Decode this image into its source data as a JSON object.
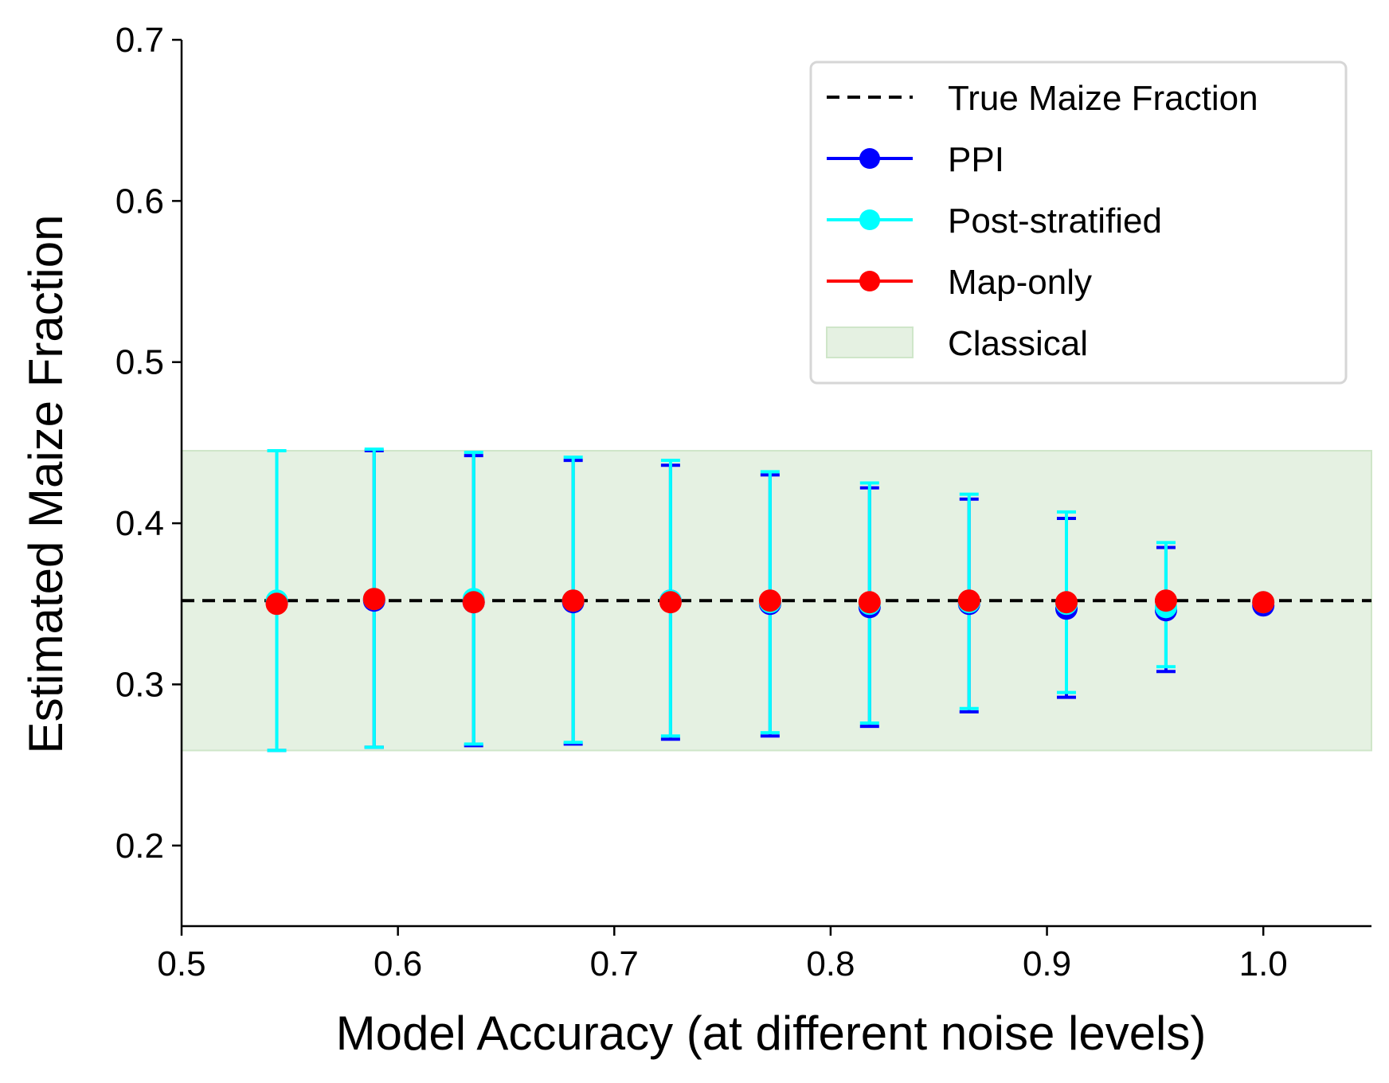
{
  "chart_data": {
    "type": "scatter",
    "title": "",
    "xlabel": "Model Accuracy (at different noise levels)",
    "ylabel": "Estimated Maize Fraction",
    "xlim": [
      0.5,
      1.05
    ],
    "ylim": [
      0.15,
      0.7
    ],
    "xticks": [
      "0.5",
      "0.6",
      "0.7",
      "0.8",
      "0.9",
      "1.0"
    ],
    "xtick_values": [
      0.5,
      0.6,
      0.7,
      0.8,
      0.9,
      1.0
    ],
    "yticks": [
      "0.2",
      "0.3",
      "0.4",
      "0.5",
      "0.6",
      "0.7"
    ],
    "ytick_values": [
      0.2,
      0.3,
      0.4,
      0.5,
      0.6,
      0.7
    ],
    "grid": false,
    "legend_position": "top-right",
    "x": [
      0.544,
      0.589,
      0.635,
      0.681,
      0.726,
      0.772,
      0.818,
      0.864,
      0.909,
      0.955,
      1.0
    ],
    "true_value": 0.352,
    "classical_interval": [
      0.259,
      0.445
    ],
    "series": [
      {
        "name": "PPI",
        "color": "#0000ff",
        "y": [
          0.351,
          0.352,
          0.351,
          0.351,
          0.352,
          0.35,
          0.348,
          0.35,
          0.347,
          0.346,
          0.349
        ],
        "lower": [
          0.259,
          0.261,
          0.262,
          0.263,
          0.266,
          0.268,
          0.274,
          0.283,
          0.292,
          0.308,
          0.347
        ],
        "upper": [
          0.445,
          0.445,
          0.442,
          0.439,
          0.436,
          0.43,
          0.422,
          0.415,
          0.403,
          0.385,
          0.352
        ]
      },
      {
        "name": "Post-stratified",
        "color": "#00ffff",
        "y": [
          0.352,
          0.353,
          0.353,
          0.352,
          0.352,
          0.351,
          0.35,
          0.351,
          0.35,
          0.348,
          0.351
        ],
        "lower": [
          0.259,
          0.261,
          0.263,
          0.264,
          0.268,
          0.27,
          0.276,
          0.285,
          0.295,
          0.311,
          0.349
        ],
        "upper": [
          0.445,
          0.446,
          0.444,
          0.441,
          0.439,
          0.432,
          0.425,
          0.418,
          0.407,
          0.388,
          0.352
        ]
      },
      {
        "name": "Map-only",
        "color": "#ff0000",
        "y": [
          0.35,
          0.353,
          0.351,
          0.352,
          0.351,
          0.352,
          0.351,
          0.352,
          0.351,
          0.352,
          0.351
        ]
      }
    ],
    "legend": [
      {
        "label": "True Maize Fraction",
        "kind": "dashed-line",
        "color": "#000000"
      },
      {
        "label": "PPI",
        "kind": "line-marker",
        "color": "#0000ff"
      },
      {
        "label": "Post-stratified",
        "kind": "line-marker",
        "color": "#00ffff"
      },
      {
        "label": "Map-only",
        "kind": "line-marker",
        "color": "#ff0000"
      },
      {
        "label": "Classical",
        "kind": "patch",
        "color": "#e5f1e2"
      }
    ]
  }
}
